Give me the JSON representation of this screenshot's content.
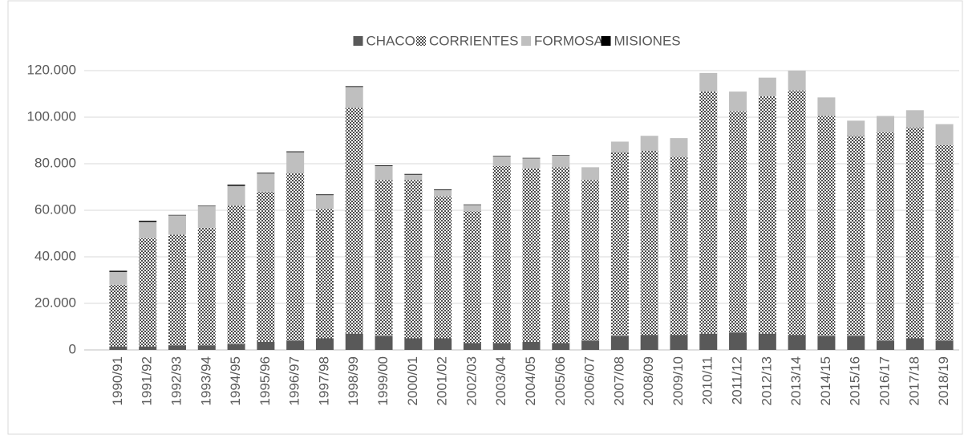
{
  "chart_data": {
    "type": "bar",
    "stacked": true,
    "categories": [
      "1990/91",
      "1991/92",
      "1992/93",
      "1993/94",
      "1994/95",
      "1995/96",
      "1996/97",
      "1997/98",
      "1998/99",
      "1999/00",
      "2000/01",
      "2001/02",
      "2002/03",
      "2003/04",
      "2004/05",
      "2005/06",
      "2006/07",
      "2007/08",
      "2008/09",
      "2009/10",
      "2010/11",
      "2011/12",
      "2012/13",
      "2013/14",
      "2014/15",
      "2015/16",
      "2016/17",
      "2017/18",
      "2018/19"
    ],
    "series": [
      {
        "name": "CHACO",
        "color": "#595959",
        "values": [
          1500,
          1500,
          2000,
          2000,
          2500,
          3500,
          4000,
          5000,
          7000,
          6000,
          5000,
          5000,
          3000,
          3000,
          3500,
          3000,
          4000,
          6000,
          6500,
          6500,
          7000,
          7500,
          7000,
          6500,
          6000,
          6000,
          4000,
          5000,
          4000
        ]
      },
      {
        "name": "CORRIENTES",
        "color": "#7f7f7f",
        "pattern": "checker",
        "values": [
          26500,
          46500,
          47500,
          50500,
          59500,
          64500,
          72000,
          55500,
          97000,
          67000,
          68000,
          61000,
          56500,
          76000,
          74500,
          75500,
          69000,
          79000,
          79000,
          76500,
          104000,
          95000,
          102000,
          105000,
          94500,
          86000,
          89500,
          90500,
          84000
        ]
      },
      {
        "name": "FORMOSA",
        "color": "#bfbfbf",
        "values": [
          5500,
          7000,
          8300,
          9300,
          8500,
          7800,
          9000,
          6000,
          9000,
          6000,
          2300,
          2700,
          2800,
          4200,
          4300,
          5000,
          5500,
          4500,
          6500,
          8000,
          8000,
          8500,
          8000,
          8500,
          8000,
          6500,
          7000,
          7500,
          9000
        ]
      },
      {
        "name": "MISIONES",
        "color": "#000000",
        "values": [
          500,
          500,
          200,
          200,
          500,
          300,
          300,
          300,
          300,
          300,
          300,
          300,
          200,
          200,
          200,
          200,
          0,
          0,
          0,
          0,
          0,
          0,
          0,
          0,
          0,
          0,
          0,
          0,
          0
        ]
      }
    ],
    "ylim": [
      0,
      120000
    ],
    "yticks": [
      0,
      {
        "value": 20000,
        "label": "20.000"
      },
      {
        "value": 40000,
        "label": "40.000"
      },
      {
        "value": 60000,
        "label": "60.000"
      },
      {
        "value": 80000,
        "label": "80.000"
      },
      {
        "value": 100000,
        "label": "100.000"
      },
      {
        "value": 120000,
        "label": "120.000"
      }
    ],
    "grid": true,
    "legend": "top"
  }
}
